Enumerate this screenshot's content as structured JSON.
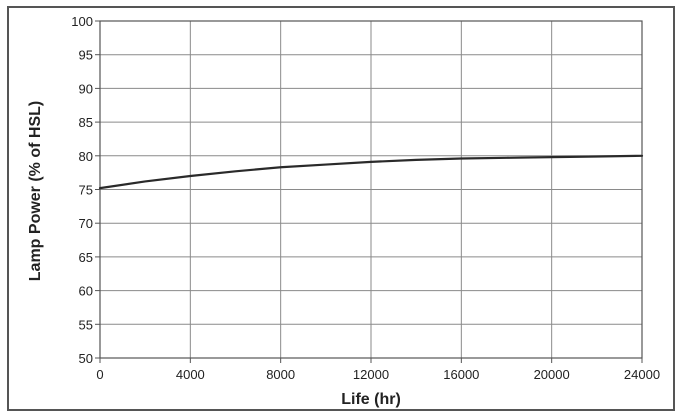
{
  "chart_data": {
    "type": "line",
    "title": "",
    "xlabel": "Life (hr)",
    "ylabel": "Lamp Power (% of HSL)",
    "xlim": [
      0,
      24000
    ],
    "ylim": [
      50,
      100
    ],
    "x_ticks": [
      0,
      4000,
      8000,
      12000,
      16000,
      20000,
      24000
    ],
    "y_ticks": [
      50,
      55,
      60,
      65,
      70,
      75,
      80,
      85,
      90,
      95,
      100
    ],
    "grid": true,
    "series": [
      {
        "x": [
          0,
          2000,
          4000,
          6000,
          8000,
          10000,
          12000,
          14000,
          16000,
          18000,
          20000,
          22000,
          24000
        ],
        "y": [
          75.2,
          76.2,
          77.0,
          77.7,
          78.3,
          78.7,
          79.1,
          79.4,
          79.6,
          79.7,
          79.8,
          79.9,
          80.0
        ]
      }
    ],
    "colors": {
      "line": "#2a2a2a",
      "grid": "#8a8a8a",
      "axis": "#555555"
    }
  }
}
